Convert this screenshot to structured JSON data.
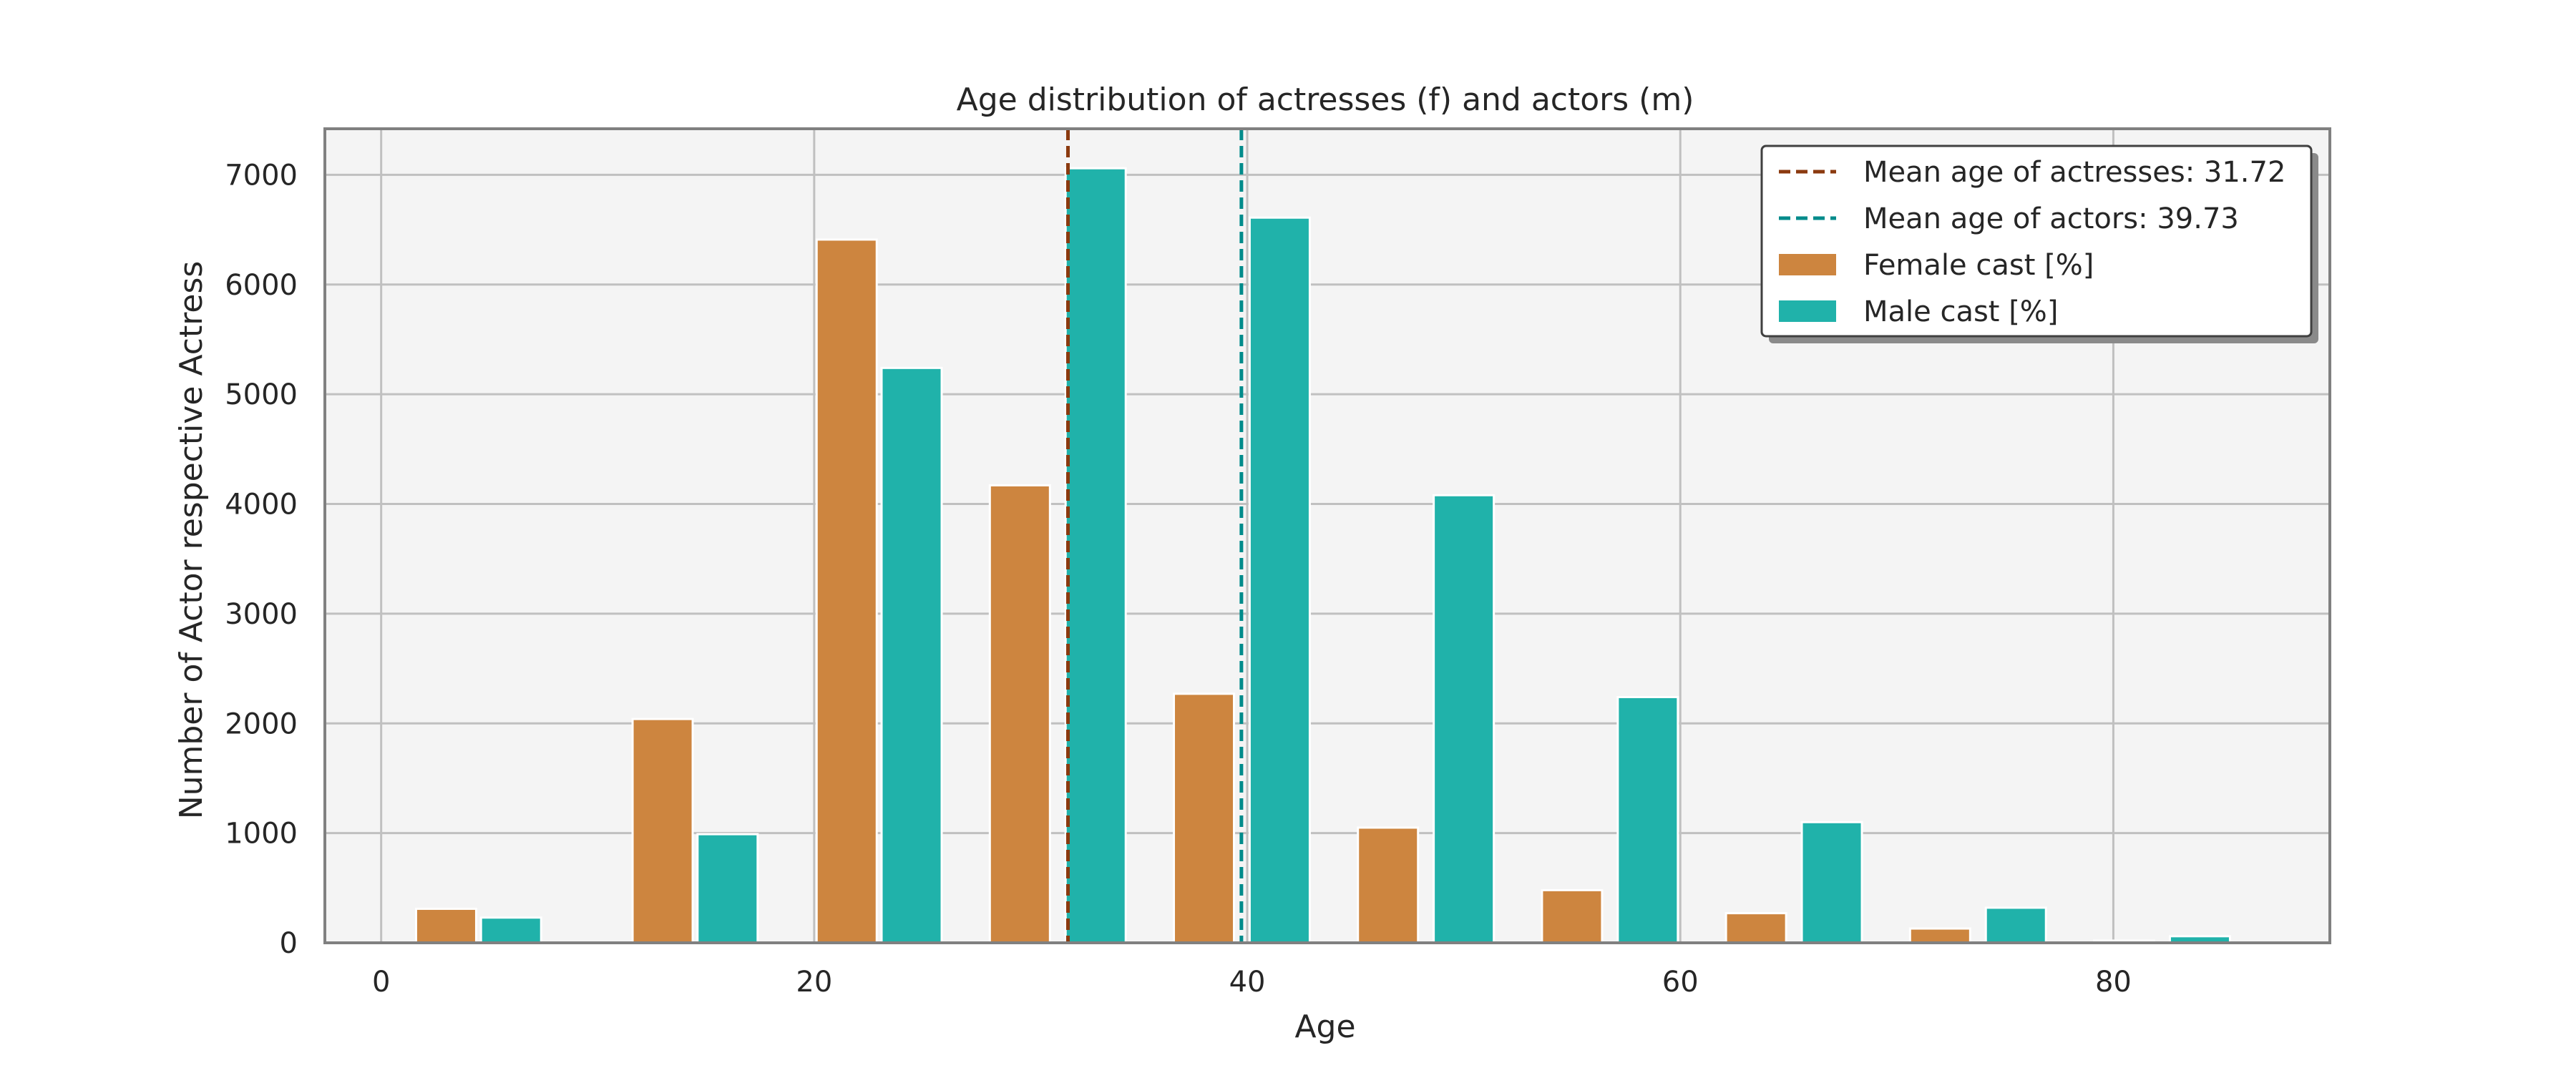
{
  "chart_data": {
    "type": "bar",
    "title": "Age distribution of actresses (f) and actors (m)",
    "xlabel": "Age",
    "ylabel": "Number of Actor respective Actress",
    "xlim": [
      -2.6,
      90
    ],
    "ylim": [
      0,
      7420
    ],
    "xticks": [
      0,
      20,
      40,
      60,
      80
    ],
    "yticks": [
      0,
      1000,
      2000,
      3000,
      4000,
      5000,
      6000,
      7000
    ],
    "grid": true,
    "legend_position": "top-right",
    "colors": {
      "female": "#cd853f",
      "male": "#20b2aa",
      "mean_female": "#8b3a0f",
      "mean_male": "#008b8b",
      "background": "#f4f4f4",
      "grid": "#c0c0c0",
      "frame": "#808080"
    },
    "series": [
      {
        "name": "Female cast [%]",
        "x": [
          3,
          13,
          21.5,
          29.5,
          38,
          46.5,
          55,
          63.5,
          72,
          80.5
        ],
        "values": [
          310,
          2040,
          6410,
          4170,
          2270,
          1050,
          480,
          270,
          130,
          20
        ]
      },
      {
        "name": "Male cast [%]",
        "x": [
          6,
          16,
          24.5,
          33,
          41.5,
          50,
          58.5,
          67,
          75.5,
          84
        ],
        "values": [
          230,
          990,
          5240,
          7060,
          6610,
          4080,
          2240,
          1100,
          320,
          60
        ]
      }
    ],
    "mean_lines": [
      {
        "name": "Mean age of actresses: 31.72",
        "value": 31.72,
        "series": "female"
      },
      {
        "name": "Mean age of actors: 39.73",
        "value": 39.73,
        "series": "male"
      }
    ]
  }
}
